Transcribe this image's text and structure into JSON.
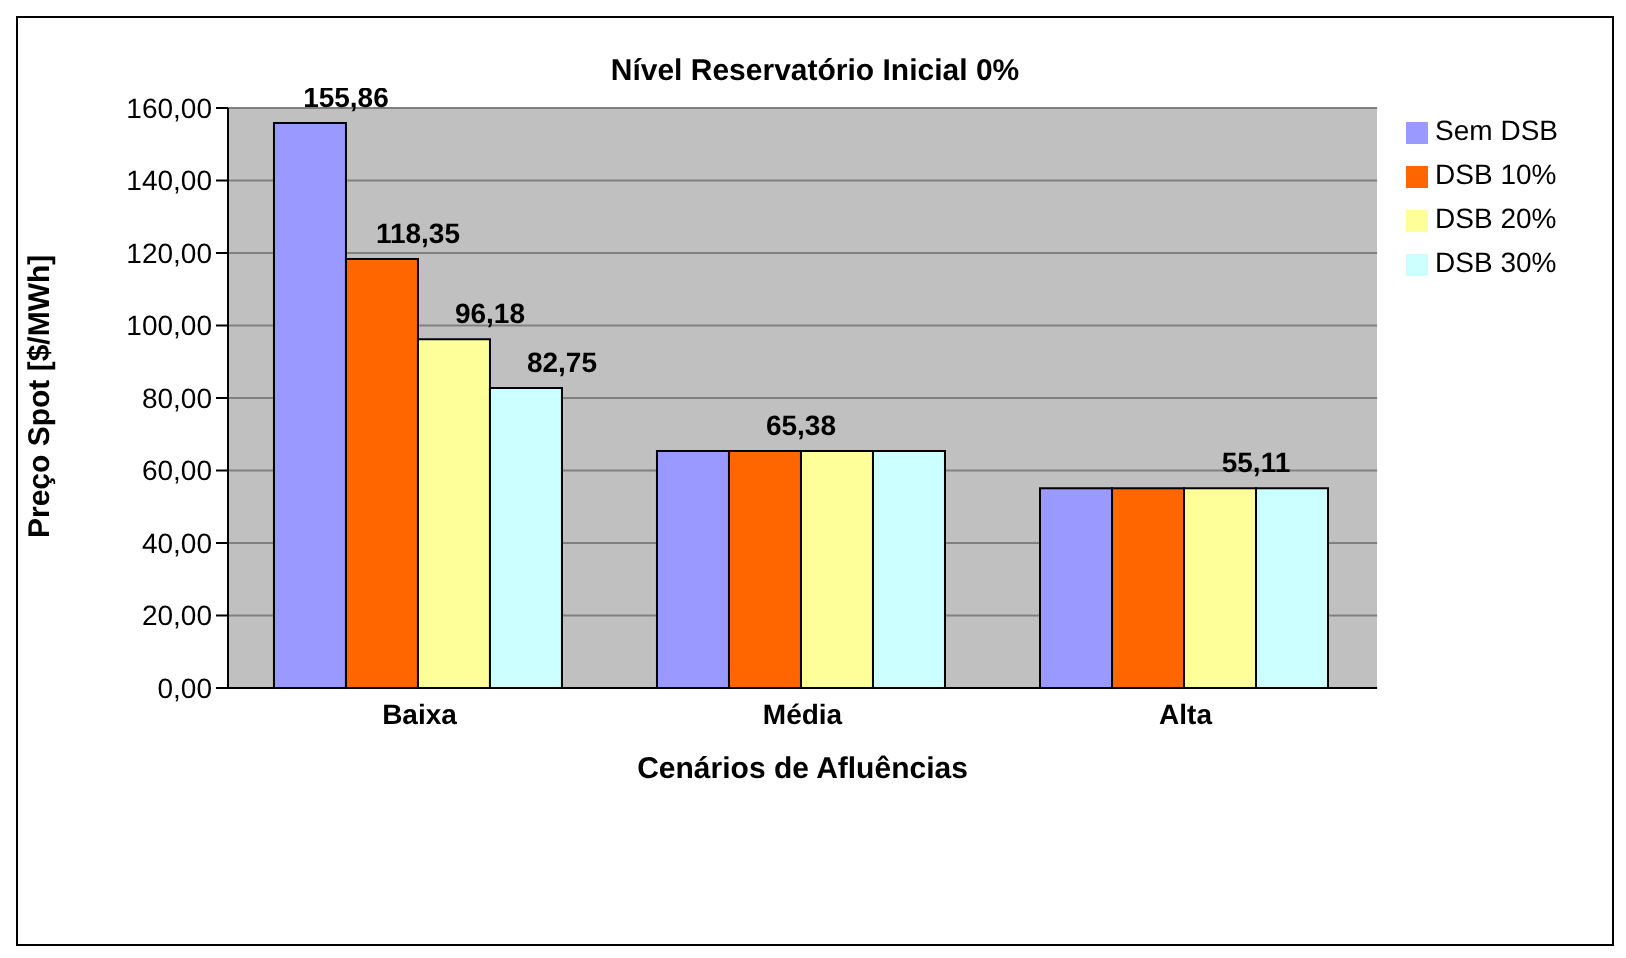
{
  "chart_data": {
    "type": "bar",
    "title": "Nível Reservatório Inicial 0%",
    "xlabel": "Cenários de Afluências",
    "ylabel": "Preço Spot [$/MWh]",
    "categories": [
      "Baixa",
      "Média",
      "Alta"
    ],
    "series": [
      {
        "name": "Sem DSB",
        "color": "#9999ff",
        "values": [
          155.86,
          65.38,
          55.11
        ],
        "value_labels": [
          "155,86",
          null,
          null
        ]
      },
      {
        "name": "DSB 10%",
        "color": "#ff6600",
        "values": [
          118.35,
          65.38,
          55.11
        ],
        "value_labels": [
          "118,35",
          "65,38",
          null
        ]
      },
      {
        "name": "DSB 20%",
        "color": "#ffff99",
        "values": [
          96.18,
          65.38,
          55.11
        ],
        "value_labels": [
          "96,18",
          null,
          "55,11"
        ]
      },
      {
        "name": "DSB 30%",
        "color": "#ccffff",
        "values": [
          82.75,
          65.38,
          55.11
        ],
        "value_labels": [
          "82,75",
          null,
          null
        ]
      }
    ],
    "ylim": [
      0,
      160
    ],
    "yticks": [
      {
        "value": 0,
        "label": "0,00"
      },
      {
        "value": 20,
        "label": "20,00"
      },
      {
        "value": 40,
        "label": "40,00"
      },
      {
        "value": 60,
        "label": "60,00"
      },
      {
        "value": 80,
        "label": "80,00"
      },
      {
        "value": 100,
        "label": "100,00"
      },
      {
        "value": 120,
        "label": "120,00"
      },
      {
        "value": 140,
        "label": "140,00"
      },
      {
        "value": 160,
        "label": "160,00"
      }
    ],
    "grid": "y",
    "legend": "right"
  }
}
